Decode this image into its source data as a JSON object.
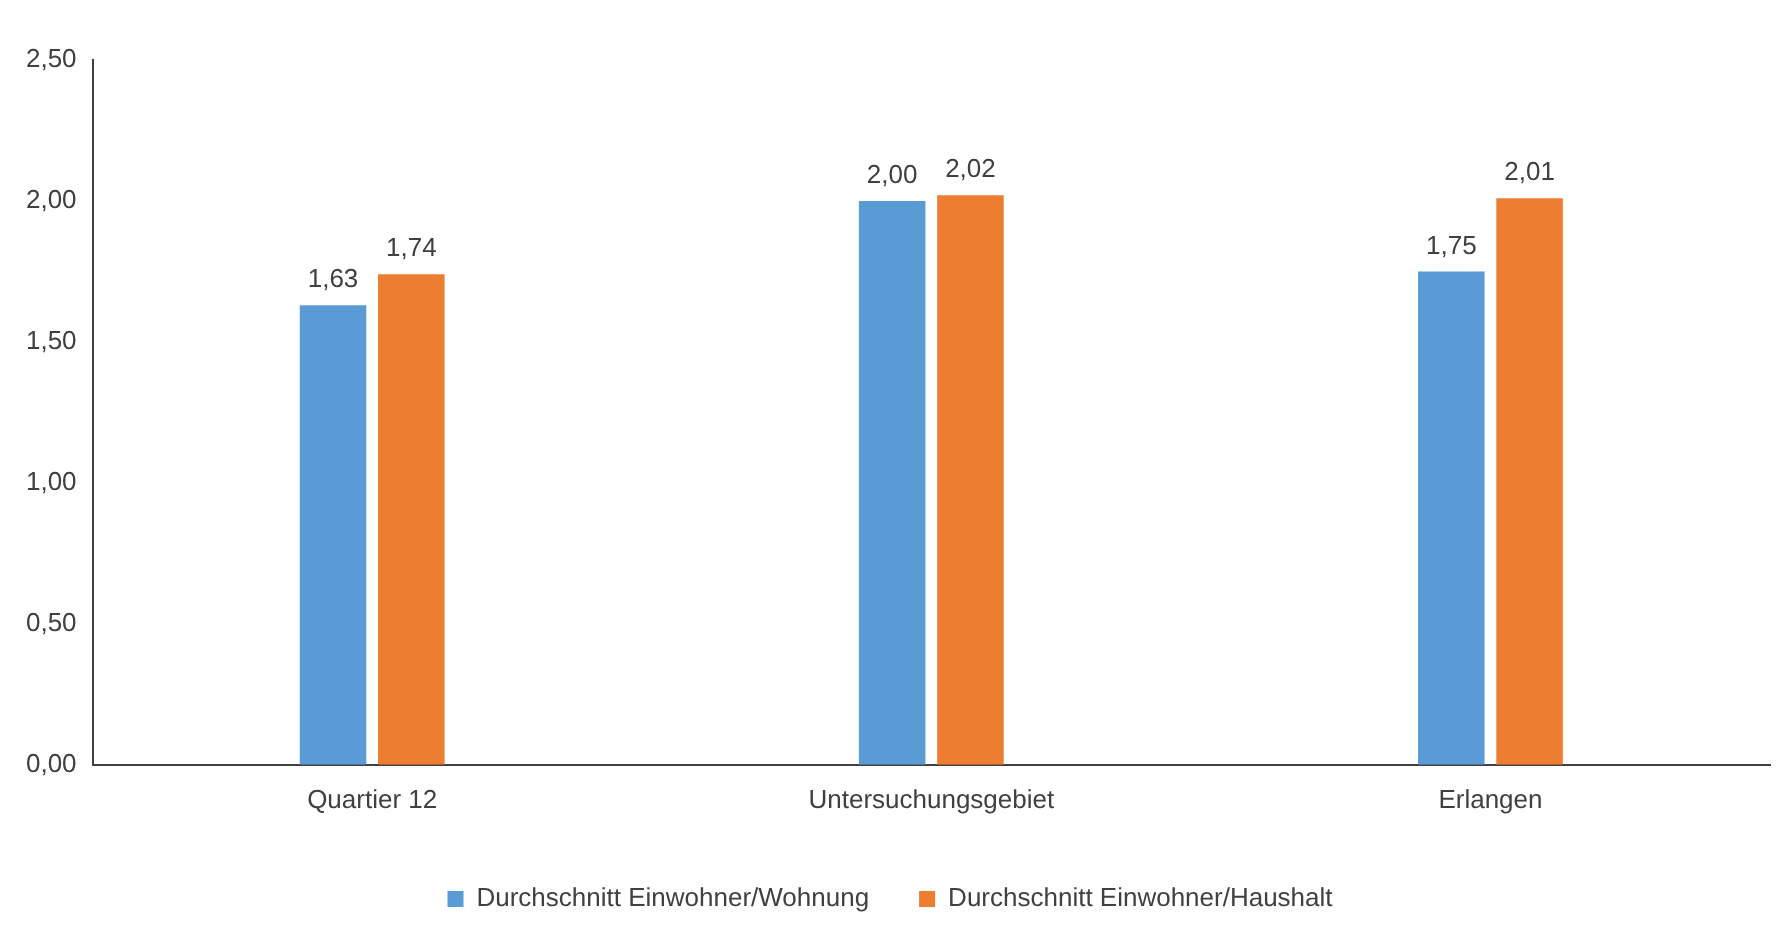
{
  "chart_data": {
    "type": "bar",
    "categories": [
      "Quartier 12",
      "Untersuchungsgebiet",
      "Erlangen"
    ],
    "series": [
      {
        "name": "Durchschnitt Einwohner/Wohnung",
        "color": "#5b9bd5",
        "values": [
          1.63,
          2.0,
          1.75
        ],
        "value_labels": [
          "1,63",
          "2,00",
          "1,75"
        ]
      },
      {
        "name": "Durchschnitt Einwohner/Haushalt",
        "color": "#ed7d31",
        "values": [
          1.74,
          2.02,
          2.01
        ],
        "value_labels": [
          "1,74",
          "2,02",
          "2,01"
        ]
      }
    ],
    "ylim": [
      0,
      2.5
    ],
    "yticks": [
      {
        "value": 0,
        "label": "0,00"
      },
      {
        "value": 0.5,
        "label": "0,50"
      },
      {
        "value": 1,
        "label": "1,00"
      },
      {
        "value": 1.5,
        "label": "1,50"
      },
      {
        "value": 2,
        "label": "2,00"
      },
      {
        "value": 2.5,
        "label": "2,50"
      }
    ],
    "grid": false,
    "legend": "bottom"
  }
}
